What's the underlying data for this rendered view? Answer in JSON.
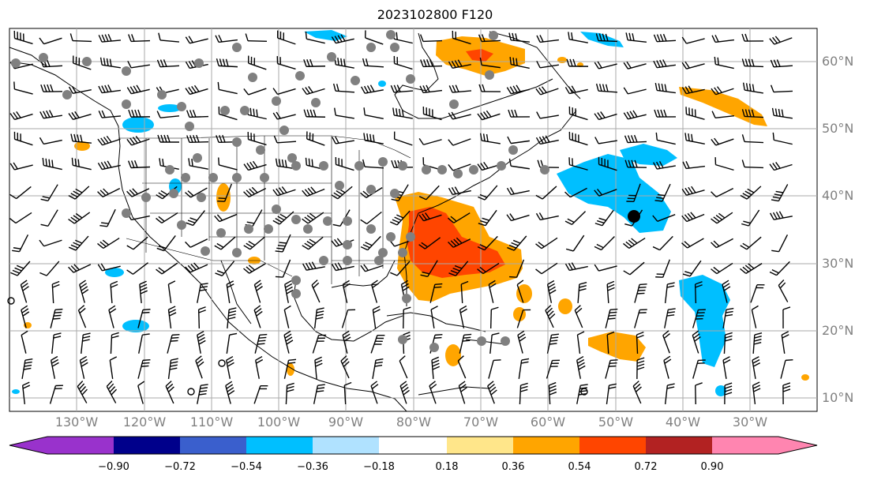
{
  "title": "2023102800 F120",
  "lon_labels": [
    "130°W",
    "120°W",
    "110°W",
    "100°W",
    "90°W",
    "80°W",
    "70°W",
    "60°W",
    "50°W",
    "40°W",
    "30°W"
  ],
  "lat_labels": [
    "60°N",
    "50°N",
    "40°N",
    "30°N",
    "20°N",
    "10°N"
  ],
  "colorbar": {
    "ticks": [
      "−0.90",
      "−0.72",
      "−0.54",
      "−0.36",
      "−0.18",
      "0.18",
      "0.36",
      "0.54",
      "0.72",
      "0.90"
    ],
    "colors": [
      "#9932cc",
      "#00008b",
      "#3a5fcd",
      "#00bfff",
      "#b0e2ff",
      "#ffffff",
      "#ffe68a",
      "#ffa500",
      "#ff4500",
      "#b22222",
      "#ff85b0"
    ]
  },
  "colors": {
    "warm_light": "#ffa500",
    "warm_strong": "#ff4500",
    "cool": "#00bfff",
    "gridline": "#aaaaaa",
    "marker": "#808080"
  },
  "icons": [
    "wind-barb-icon",
    "gray-dot-marker",
    "open-circle-marker"
  ]
}
